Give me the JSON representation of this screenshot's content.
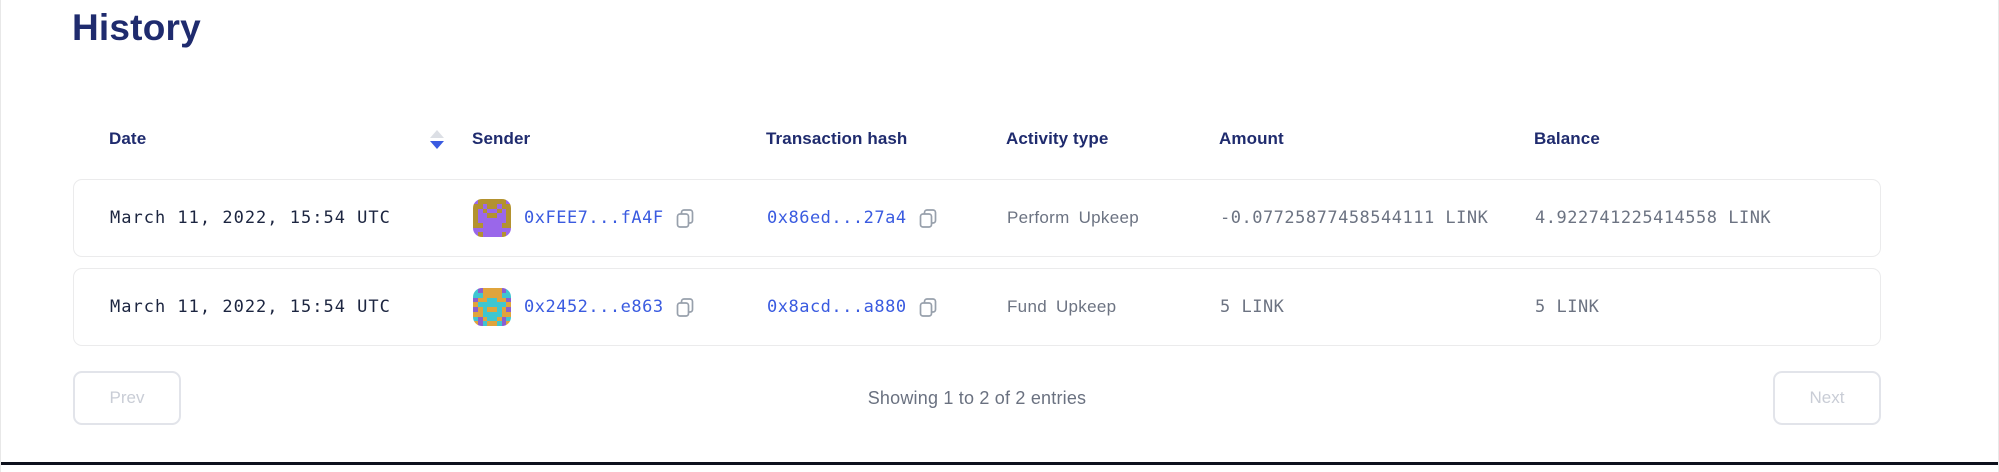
{
  "page": {
    "title": "History"
  },
  "table": {
    "columns": [
      {
        "label": "Date",
        "sortable": true,
        "sort_direction": "desc"
      },
      {
        "label": "Sender"
      },
      {
        "label": "Transaction hash"
      },
      {
        "label": "Activity type"
      },
      {
        "label": "Amount"
      },
      {
        "label": "Balance"
      }
    ],
    "rows": [
      {
        "date": "March 11, 2022, 15:54 UTC",
        "sender": "0xFEE7...fA4F",
        "tx_hash": "0x86ed...27a4",
        "activity": "Perform Upkeep",
        "amount": "-0.07725877458544111 LINK",
        "balance": "4.922741225414558 LINK",
        "avatar": {
          "colors": {
            "0": "#9a67ea",
            "1": "#b3922f",
            "2": "#b3922f"
          },
          "pattern": [
            "01111110",
            "11011011",
            "10100101",
            "10011001",
            "10000001",
            "11000011",
            "00000000",
            "01000010"
          ]
        }
      },
      {
        "date": "March 11, 2022, 15:54 UTC",
        "sender": "0x2452...e863",
        "tx_hash": "0x8acd...a880",
        "activity": "Fund Upkeep",
        "amount": "5 LINK",
        "balance": "5 LINK",
        "avatar": {
          "colors": {
            "0": "#e0a43c",
            "1": "#3fc6d1",
            "2": "#8a5fd0"
          },
          "pattern": [
            "12000021",
            "11000011",
            "20011002",
            "01111110",
            "20100102",
            "00111100",
            "12011021",
            "02100120"
          ]
        }
      }
    ]
  },
  "pagination": {
    "prev_label": "Prev",
    "next_label": "Next",
    "summary": "Showing 1 to 2 of 2 entries"
  },
  "colors": {
    "heading": "#1f2b6e",
    "link": "#3a5be0",
    "muted_text": "#6c7382",
    "sort_active": "#3a5be0",
    "sort_inactive": "#dcdfe5"
  }
}
